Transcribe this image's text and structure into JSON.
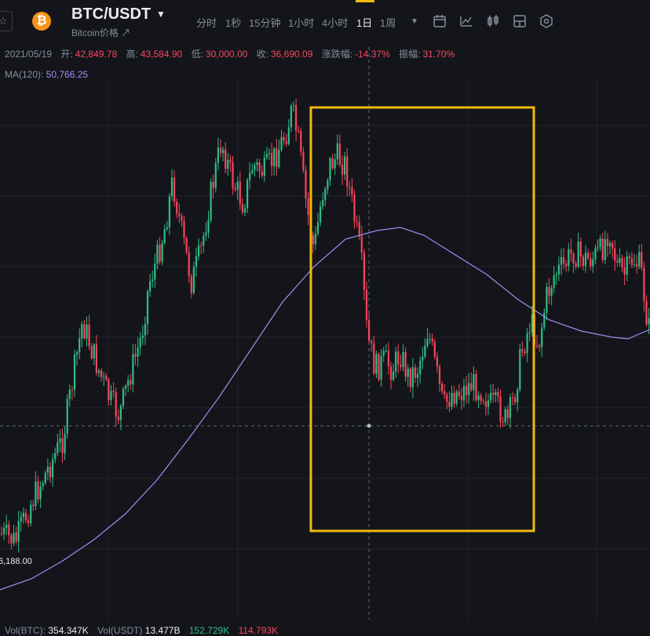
{
  "header": {
    "star_icon": "☆",
    "coin_icon_glyph": "₿",
    "pair": "BTC/USDT",
    "pair_subtitle": "Bitcoin价格 ↗",
    "timeframes": [
      "分时",
      "1秒",
      "15分钟",
      "1小时",
      "4小时",
      "1日",
      "1周"
    ],
    "active_timeframe": "1日",
    "tool_icons": [
      "calendar-icon",
      "indicator-icon",
      "candle-type-icon",
      "layout-icon",
      "settings-icon"
    ]
  },
  "ohlc": {
    "date": "2021/05/19",
    "open_label": "开:",
    "open": "42,849.78",
    "high_label": "高:",
    "high": "43,584.90",
    "low_label": "低:",
    "low": "30,000.00",
    "close_label": "收:",
    "close": "36,690.09",
    "change_label": "涨跌幅:",
    "change": "-14.37%",
    "amp_label": "振幅:",
    "amp": "31.70%"
  },
  "ma": {
    "label": "MA(120):",
    "value": "50,766.25"
  },
  "price_label": "6,188.00",
  "volume": {
    "btc_label": "Vol(BTC):",
    "btc": "354.347K",
    "usdt_label": "Vol(USDT)",
    "usdt": "13.477B",
    "v1": "152.729K",
    "v2": "114.793K"
  },
  "colors": {
    "up": "#2ebd85",
    "down": "#f6465d",
    "ma": "#9b8ff5",
    "highlight": "#f0b90b",
    "bg": "#14151a"
  }
}
